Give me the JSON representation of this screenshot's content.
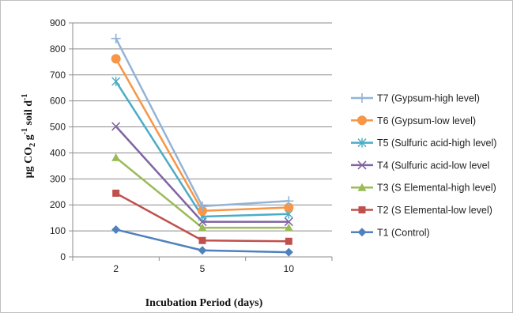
{
  "chart_data": {
    "type": "line",
    "title": "",
    "xlabel": "Incubation Period (days)",
    "ylabel": {
      "main": "µg CO",
      "sub": "2",
      "mid": " g",
      "sup1": "-1",
      "tail": " soil d",
      "sup2": "-1"
    },
    "categories": [
      "2",
      "5",
      "10"
    ],
    "ylim": [
      0,
      900
    ],
    "yticks": [
      0,
      100,
      200,
      300,
      400,
      500,
      600,
      700,
      800,
      900
    ],
    "grid": true,
    "legend_position": "right",
    "series": [
      {
        "name": "T7 (Gypsum-high level)",
        "values": [
          840,
          195,
          215
        ],
        "color": "#95b3d7",
        "marker": "plus"
      },
      {
        "name": "T6 (Gypsum-low level)",
        "values": [
          762,
          177,
          190
        ],
        "color": "#f79646",
        "marker": "circle"
      },
      {
        "name": "T5 (Sulfuric acid-high level)",
        "values": [
          675,
          155,
          165
        ],
        "color": "#4bacc6",
        "marker": "star"
      },
      {
        "name": "T4 (Sulfuric acid-low level",
        "values": [
          502,
          135,
          135
        ],
        "color": "#8064a2",
        "marker": "x"
      },
      {
        "name": "T3 (S Elemental-high level)",
        "values": [
          382,
          112,
          112
        ],
        "color": "#9bbb59",
        "marker": "triangle"
      },
      {
        "name": "T2 (S Elemental-low level)",
        "values": [
          245,
          63,
          60
        ],
        "color": "#c0504d",
        "marker": "square"
      },
      {
        "name": "T1 (Control)",
        "values": [
          105,
          25,
          18
        ],
        "color": "#4f81bd",
        "marker": "diamond"
      }
    ]
  }
}
